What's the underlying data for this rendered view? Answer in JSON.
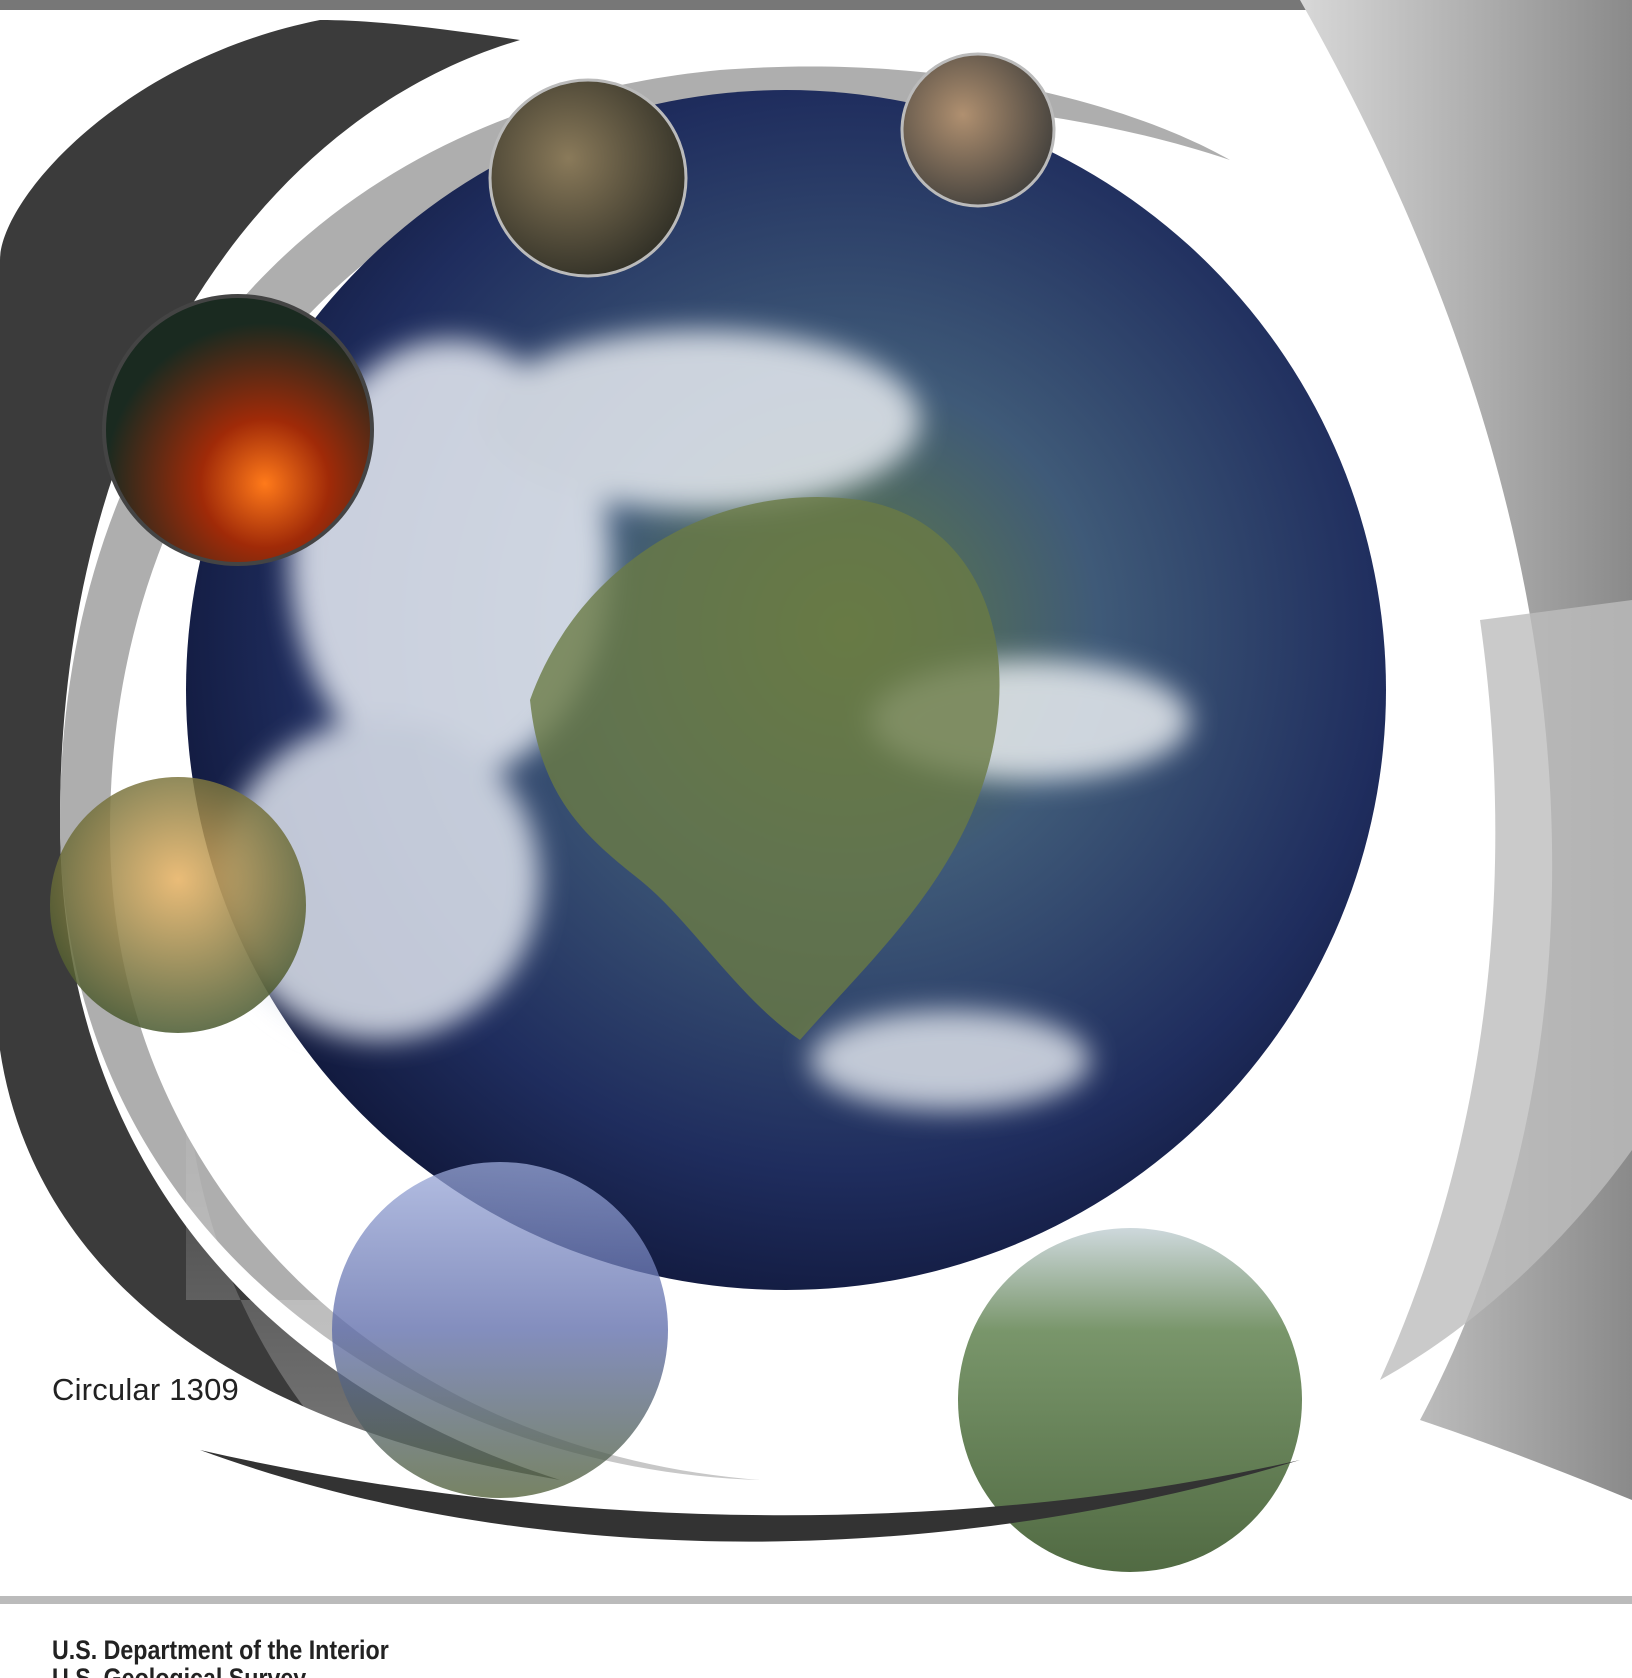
{
  "cover": {
    "series_label": "Circular 1309",
    "agency": "U.S. Department of the Interior",
    "bureau": "U.S. Geological Survey"
  }
}
